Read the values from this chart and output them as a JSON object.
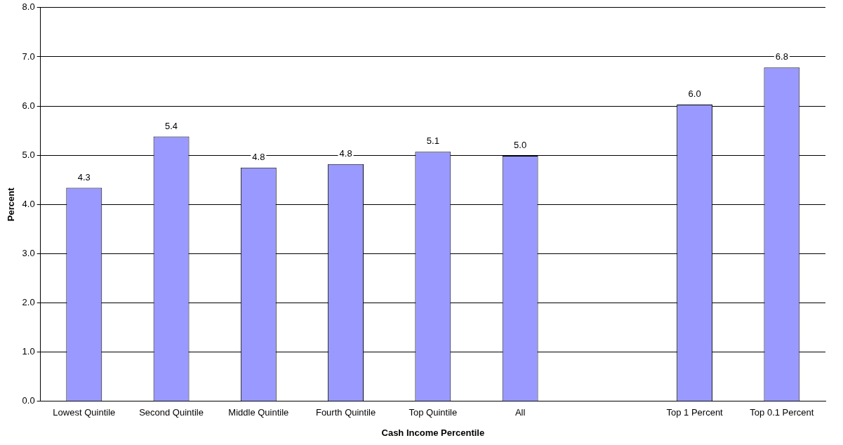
{
  "chart_data": {
    "type": "bar",
    "xlabel": "Cash Income Percentile",
    "ylabel": "Percent",
    "categories": [
      "Lowest Quintile",
      "Second Quintile",
      "Middle Quintile",
      "Fourth Quintile",
      "Top Quintile",
      "All",
      null,
      "Top 1 Percent",
      "Top 0.1 Percent"
    ],
    "values": [
      4.34,
      5.38,
      4.75,
      4.82,
      5.07,
      4.99,
      null,
      6.03,
      6.78
    ],
    "value_labels": [
      "4.3",
      "5.4",
      "4.8",
      "4.8",
      "5.1",
      "5.0",
      null,
      "6.0",
      "6.8"
    ],
    "color": "#9999ff",
    "ylim": [
      0,
      8
    ],
    "yticks": [
      {
        "value": 0,
        "label": "0.0"
      },
      {
        "value": 1,
        "label": "1.0"
      },
      {
        "value": 2,
        "label": "2.0"
      },
      {
        "value": 3,
        "label": "3.0"
      },
      {
        "value": 4,
        "label": "4.0"
      },
      {
        "value": 5,
        "label": "5.0"
      },
      {
        "value": 6,
        "label": "6.0"
      },
      {
        "value": 7,
        "label": "7.0"
      },
      {
        "value": 8,
        "label": "8.0"
      }
    ],
    "grid": "y",
    "legend": false
  }
}
